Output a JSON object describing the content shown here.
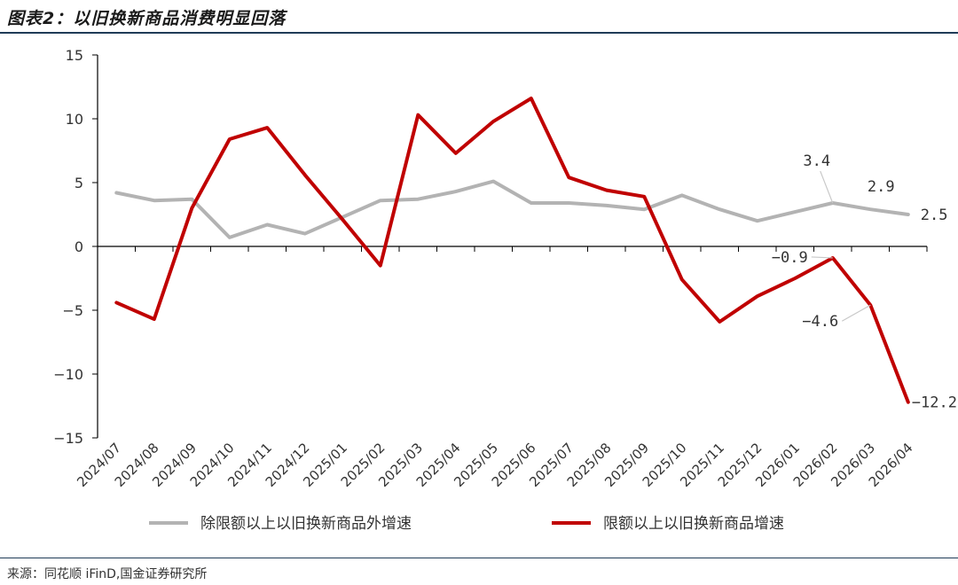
{
  "title": "图表2：以旧换新商品消费明显回落",
  "source": "来源：同花顺 iFinD,国金证券研究所",
  "chart_data": {
    "type": "line",
    "categories": [
      "2024/07",
      "2024/08",
      "2024/09",
      "2024/10",
      "2024/11",
      "2024/12",
      "2025/01",
      "2025/02",
      "2025/03",
      "2025/04",
      "2025/05",
      "2025/06",
      "2025/07",
      "2025/08",
      "2025/09",
      "2025/10",
      "2025/11",
      "2025/12",
      "2026/01",
      "2026/02",
      "2026/03",
      "2026/04"
    ],
    "ylim": [
      -15,
      15
    ],
    "yticks": [
      15,
      10,
      5,
      0,
      -5,
      -10,
      -15
    ],
    "ytick_labels": [
      "15",
      "10",
      "5",
      "0",
      "−5",
      "−10",
      "−15"
    ],
    "grid": false,
    "legend_position": "bottom",
    "series": [
      {
        "name": "除限额以上以旧换新商品外增速",
        "color": "#b3b3b3",
        "values": [
          4.2,
          3.6,
          3.7,
          0.7,
          1.7,
          1.0,
          2.3,
          3.6,
          3.7,
          4.3,
          5.1,
          3.4,
          3.4,
          3.2,
          2.9,
          4.0,
          2.9,
          2.0,
          2.7,
          3.4,
          2.9,
          2.5
        ]
      },
      {
        "name": "限额以上以旧换新商品增速",
        "color": "#c00000",
        "values": [
          -4.4,
          -5.7,
          3.0,
          8.4,
          9.3,
          5.6,
          2.1,
          -1.5,
          10.3,
          7.3,
          9.8,
          11.6,
          5.4,
          4.4,
          3.9,
          -2.6,
          -5.9,
          -3.9,
          -2.5,
          -0.9,
          -4.6,
          -12.2
        ]
      }
    ],
    "annotations": [
      {
        "series": 0,
        "index": 19,
        "text": "3.4"
      },
      {
        "series": 0,
        "index": 20,
        "text": "2.9"
      },
      {
        "series": 0,
        "index": 21,
        "text": "2.5"
      },
      {
        "series": 1,
        "index": 19,
        "text": "−0.9"
      },
      {
        "series": 1,
        "index": 20,
        "text": "−4.6"
      },
      {
        "series": 1,
        "index": 21,
        "text": "−12.2"
      }
    ]
  }
}
